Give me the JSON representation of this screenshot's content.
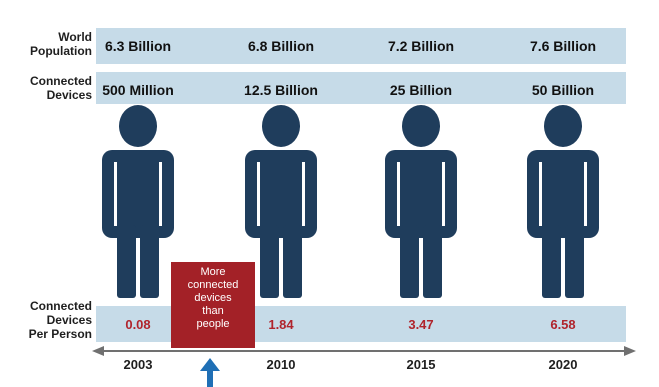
{
  "rows": {
    "world_population_label": [
      "World",
      "Population"
    ],
    "connected_devices_label": [
      "Connected",
      "Devices"
    ],
    "per_person_label": [
      "Connected",
      "Devices",
      "Per Person"
    ]
  },
  "callout": {
    "lines": [
      "More",
      "connected",
      "devices",
      "than",
      "people"
    ]
  },
  "colors": {
    "figure": "#1f3d5c",
    "band": "#c6dbe8",
    "callout": "#a32127",
    "per_person_text": "#b0242c"
  },
  "chart_data": {
    "type": "table",
    "categories": [
      "2003",
      "2010",
      "2015",
      "2020"
    ],
    "world_population": [
      "6.3 Billion",
      "6.8 Billion",
      "7.2 Billion",
      "7.6 Billion"
    ],
    "connected_devices": [
      "500 Million",
      "12.5 Billion",
      "25 Billion",
      "50 Billion"
    ],
    "devices_per_person": [
      "0.08",
      "1.84",
      "3.47",
      "6.58"
    ]
  }
}
